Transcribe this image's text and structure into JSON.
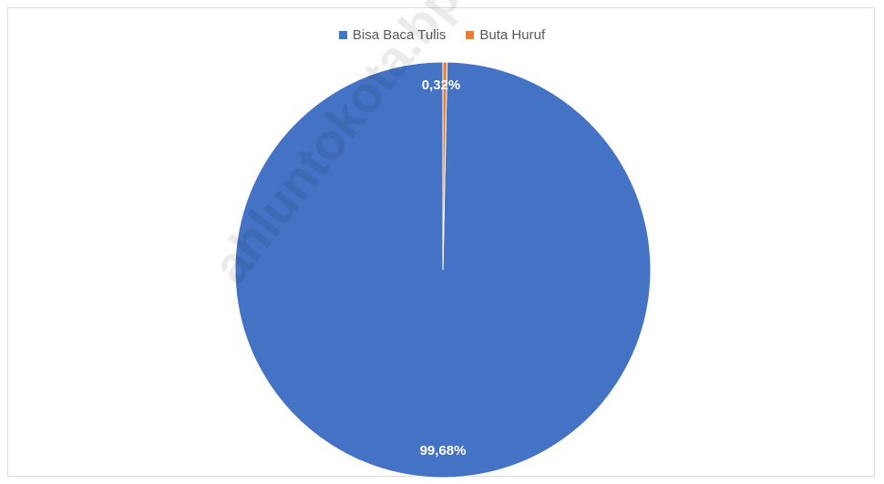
{
  "chart_data": {
    "type": "pie",
    "title": "",
    "categories": [
      "Bisa Baca Tulis",
      "Buta Huruf"
    ],
    "values": [
      99.68,
      0.32
    ],
    "data_labels": [
      "99,68%",
      "0,32%"
    ],
    "colors": [
      "#4472c4",
      "#ed7d31"
    ],
    "legend_position": "top"
  },
  "legend": {
    "items": [
      {
        "label": "Bisa Baca Tulis",
        "color": "#4472c4"
      },
      {
        "label": "Buta Huruf",
        "color": "#ed7d31"
      }
    ]
  },
  "watermark": {
    "text": "ahluntokota.bps.go."
  }
}
